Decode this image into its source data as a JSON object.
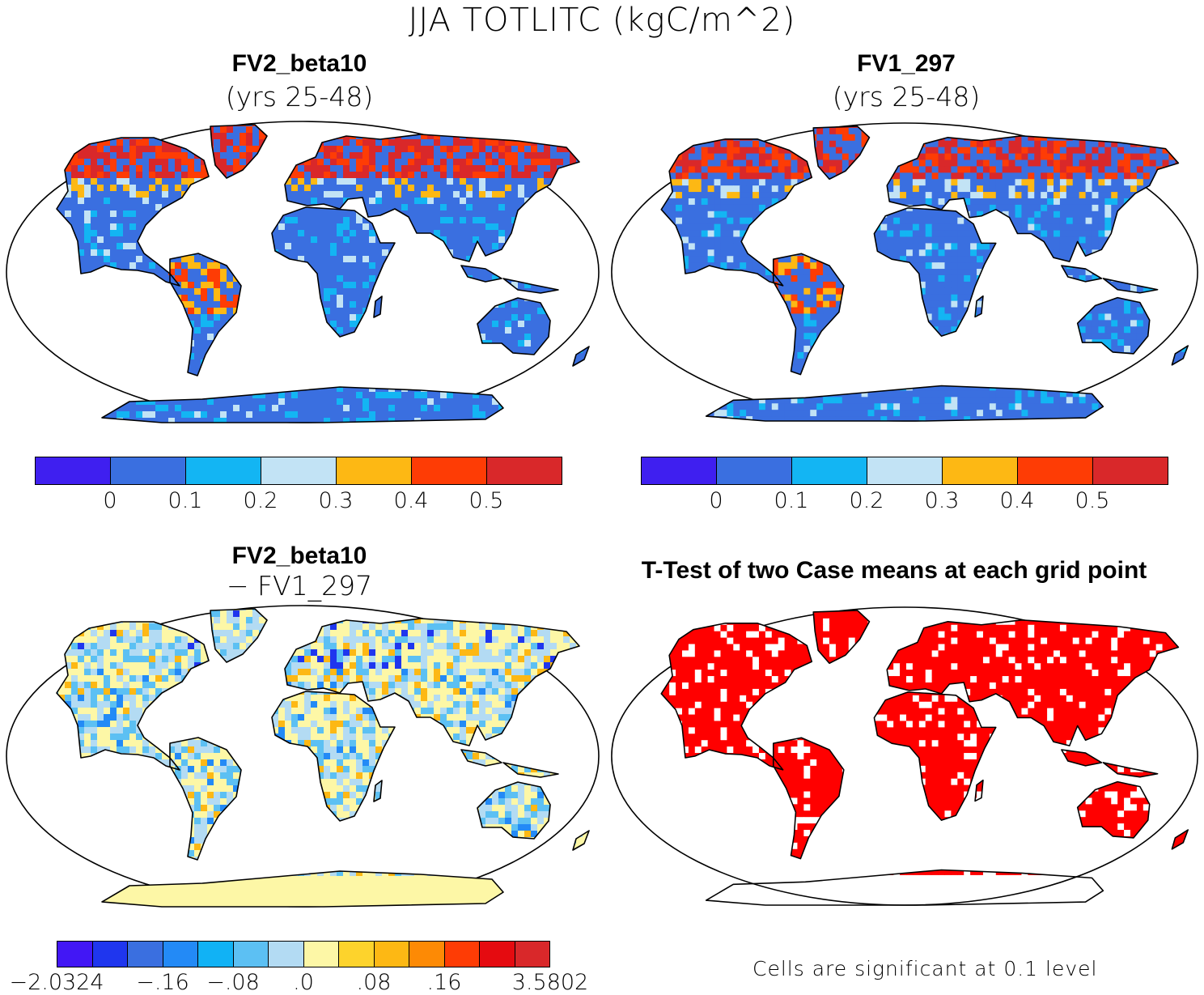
{
  "title": "JJA TOTLITC (kgC/m^2)",
  "panels": {
    "top_left": {
      "title": "FV2_beta10",
      "subtitle": "(yrs 25-48)"
    },
    "top_right": {
      "title": "FV1_297",
      "subtitle": "(yrs 25-48)"
    },
    "bottom_left": {
      "title": "FV2_beta10",
      "subtitle": "− FV1_297"
    },
    "bottom_right": {
      "title": "T-Test of two Case means at each grid point",
      "note": "Cells are significant at 0.1 level"
    }
  },
  "colorbars": {
    "absolute": {
      "colors": [
        "#3f1ff0",
        "#3a6fe0",
        "#13b5f3",
        "#c2e3f5",
        "#fdb814",
        "#fe3c05",
        "#d9282a"
      ],
      "tick_labels": [
        "0",
        "0.1",
        "0.2",
        "0.3",
        "0.4",
        "0.5"
      ]
    },
    "difference": {
      "colors": [
        "#4217f5",
        "#1f36ee",
        "#3a6fe0",
        "#238af6",
        "#11b2f5",
        "#5cc0f3",
        "#b3dbf3",
        "#fdf7a6",
        "#fdd32c",
        "#fdb814",
        "#fd8a05",
        "#fe3c05",
        "#e50b10",
        "#d9282a"
      ],
      "tick_labels": [
        "−2.0324",
        "−.16",
        "−.08",
        ".0",
        ".08",
        ".16",
        "3.5802"
      ]
    }
  },
  "colors": {
    "ocean": "#ffffff",
    "outline": "#000000",
    "significant": "#ff0000"
  }
}
